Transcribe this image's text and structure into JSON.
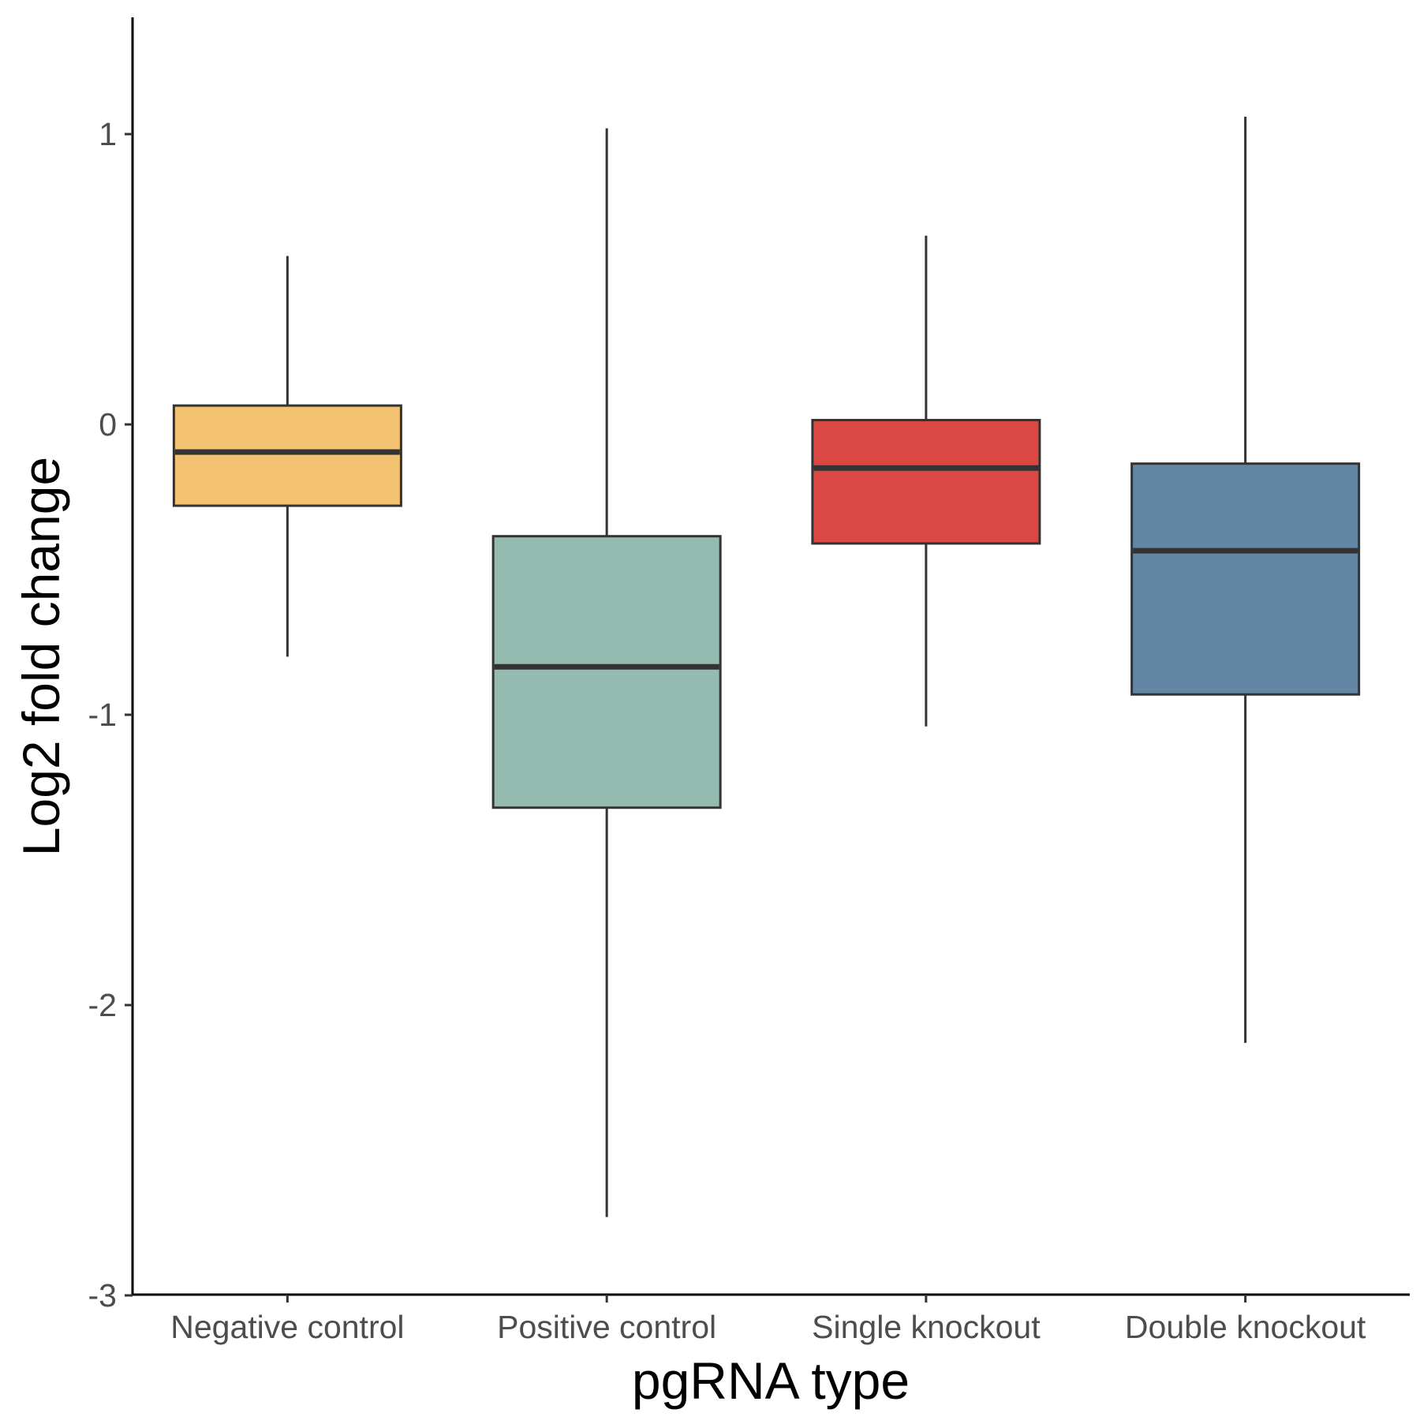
{
  "chart_data": {
    "type": "boxplot",
    "xlabel": "pgRNA type",
    "ylabel": "Log2 fold change",
    "ylim": [
      -3,
      1.4
    ],
    "yticks": [
      1,
      0,
      -1,
      -2,
      -3
    ],
    "grid": false,
    "legend": "none",
    "categories": [
      "Negative control",
      "Positive control",
      "Single knockout",
      "Double knockout"
    ],
    "boxes": [
      {
        "category": "Negative control",
        "whisker_low": -0.8,
        "q1": -0.28,
        "median": -0.095,
        "q3": 0.065,
        "whisker_high": 0.58,
        "color": "#F3C270"
      },
      {
        "category": "Positive control",
        "whisker_low": -2.73,
        "q1": -1.32,
        "median": -0.835,
        "q3": -0.385,
        "whisker_high": 1.02,
        "color": "#95BAAF"
      },
      {
        "category": "Single knockout",
        "whisker_low": -1.04,
        "q1": -0.41,
        "median": -0.15,
        "q3": 0.015,
        "whisker_high": 0.65,
        "color": "#DB4743"
      },
      {
        "category": "Double knockout",
        "whisker_low": -2.13,
        "q1": -0.93,
        "median": -0.435,
        "q3": -0.135,
        "whisker_high": 1.06,
        "color": "#6286A3"
      }
    ]
  }
}
